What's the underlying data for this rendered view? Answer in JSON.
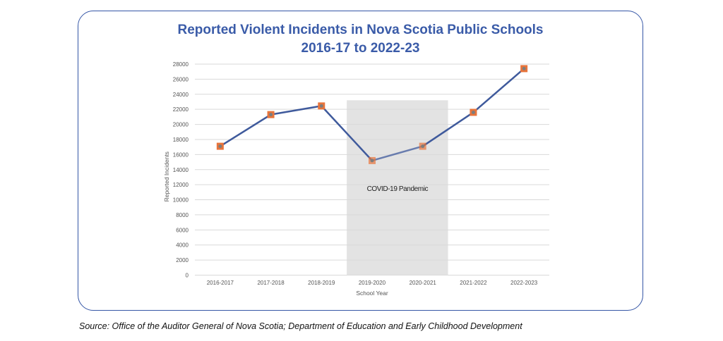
{
  "chart_data": {
    "type": "line",
    "title": [
      "Reported Violent Incidents in Nova Scotia Public Schools",
      "2016-17 to 2022-23"
    ],
    "xlabel": "School Year",
    "ylabel": "Reported Incidents",
    "categories": [
      "2016-2017",
      "2017-2018",
      "2018-2019",
      "2019-2020",
      "2020-2021",
      "2021-2022",
      "2022-2023"
    ],
    "series": [
      {
        "name": "Reported Incidents",
        "values": [
          17100,
          21300,
          22450,
          15200,
          17100,
          21600,
          27400
        ]
      }
    ],
    "ylim": [
      0,
      28000
    ],
    "yticks": [
      0,
      2000,
      4000,
      6000,
      8000,
      10000,
      12000,
      14000,
      16000,
      18000,
      20000,
      22000,
      24000,
      26000,
      28000
    ],
    "grid": true,
    "annotation": {
      "text": "COVID-19 Pandemic",
      "from": "2019-2020",
      "to": "2020-2021",
      "top_value": 23200
    },
    "colors": {
      "line": "#3f5a9c",
      "marker": "#e8743b",
      "shade": "#e3e3e3",
      "title": "#3a5ba8"
    }
  },
  "source": "Source: Office of the Auditor General of Nova Scotia; Department of Education and Early Childhood Development"
}
